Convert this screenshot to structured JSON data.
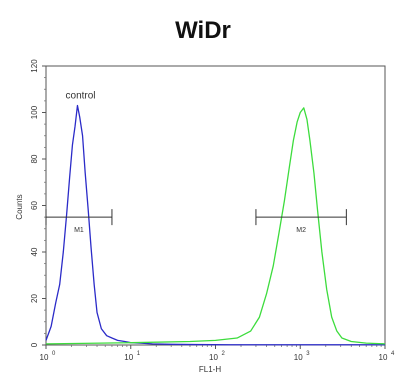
{
  "chart_data": {
    "type": "line",
    "title": "WiDr",
    "xlabel": "FL1-H",
    "ylabel": "Counts",
    "xscale": "log",
    "xlim": [
      1,
      10000
    ],
    "ylim": [
      0,
      120
    ],
    "grid": false,
    "x_ticks": [
      {
        "value": 1,
        "base": "10",
        "exp": "0"
      },
      {
        "value": 10,
        "base": "10",
        "exp": "1"
      },
      {
        "value": 100,
        "base": "10",
        "exp": "2"
      },
      {
        "value": 1000,
        "base": "10",
        "exp": "3"
      },
      {
        "value": 10000,
        "base": "10",
        "exp": "4"
      }
    ],
    "y_ticks": [
      0,
      20,
      40,
      60,
      80,
      100,
      120
    ],
    "series": [
      {
        "name": "control",
        "color": "#2b2bc8",
        "x": [
          1.0,
          1.15,
          1.3,
          1.45,
          1.6,
          1.75,
          1.9,
          2.05,
          2.2,
          2.35,
          2.5,
          2.7,
          2.9,
          3.15,
          3.4,
          3.7,
          4.0,
          4.5,
          5.2,
          6.0,
          7.0,
          8.5,
          10,
          13,
          18,
          30,
          60,
          150,
          400,
          1000,
          3000,
          10000
        ],
        "y": [
          2,
          8,
          18,
          26,
          40,
          56,
          72,
          86,
          94,
          103,
          98,
          90,
          74,
          58,
          42,
          26,
          14,
          7,
          4,
          3,
          2,
          1.5,
          1,
          0.8,
          0.5,
          0.3,
          0.2,
          0.1,
          0.1,
          0.1,
          0.1,
          0.1
        ]
      },
      {
        "name": "",
        "color": "#3ddc3d",
        "x": [
          1.0,
          10,
          50,
          100,
          180,
          260,
          330,
          400,
          480,
          560,
          650,
          740,
          830,
          920,
          1000,
          1100,
          1200,
          1300,
          1450,
          1600,
          1800,
          2050,
          2350,
          2700,
          3100,
          4000,
          6000,
          10000
        ],
        "y": [
          0.5,
          1,
          1.5,
          2,
          3,
          6,
          12,
          22,
          34,
          48,
          62,
          76,
          88,
          96,
          100,
          102,
          97,
          88,
          74,
          58,
          40,
          24,
          12,
          6,
          3,
          1.5,
          0.8,
          0.5
        ]
      }
    ],
    "gates": [
      {
        "label": "M1",
        "x_start": 1.0,
        "x_end": 6.0,
        "y": 55
      },
      {
        "label": "M2",
        "x_start": 300,
        "x_end": 3500,
        "y": 55
      }
    ],
    "annotations": [
      {
        "text": "control",
        "x": 1.7,
        "y": 106
      }
    ]
  }
}
